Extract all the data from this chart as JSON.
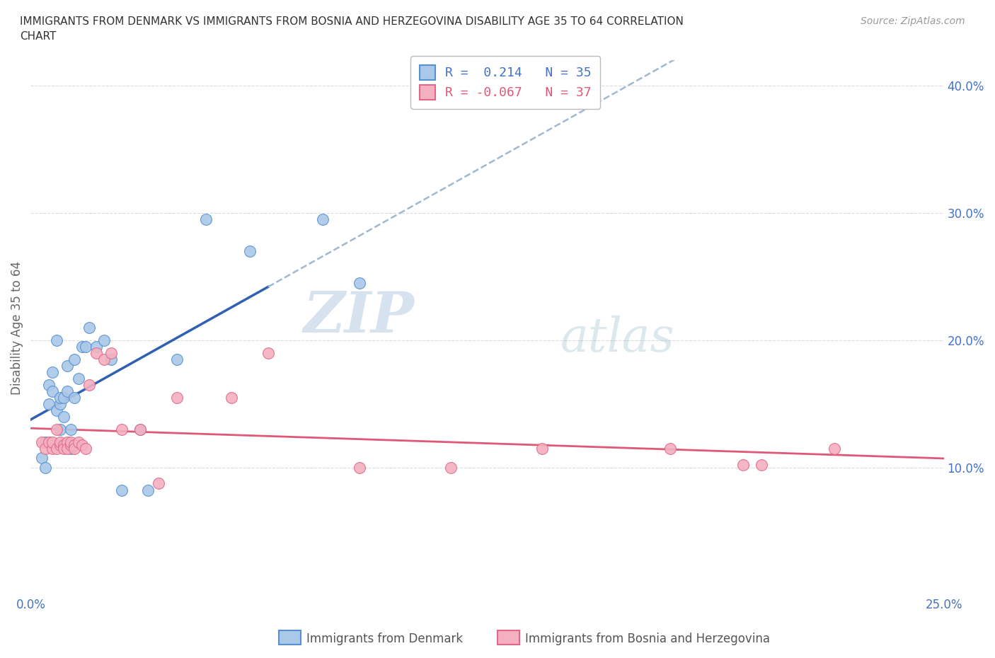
{
  "title": "IMMIGRANTS FROM DENMARK VS IMMIGRANTS FROM BOSNIA AND HERZEGOVINA DISABILITY AGE 35 TO 64 CORRELATION\nCHART",
  "source_text": "Source: ZipAtlas.com",
  "ylabel": "Disability Age 35 to 64",
  "x_min": 0.0,
  "x_max": 0.25,
  "y_min": 0.0,
  "y_max": 0.42,
  "x_ticks": [
    0.0,
    0.05,
    0.1,
    0.15,
    0.2,
    0.25
  ],
  "y_ticks": [
    0.0,
    0.1,
    0.2,
    0.3,
    0.4
  ],
  "denmark_color": "#aac8e8",
  "denmark_edge_color": "#5590d0",
  "bosnia_color": "#f4b0c0",
  "bosnia_edge_color": "#e06888",
  "denmark_line_color": "#3060b0",
  "bosnia_line_color": "#e05878",
  "denmark_dashed_color": "#a0b8d0",
  "grid_color": "#cccccc",
  "watermark_color": "#c5d8e8",
  "legend_R_label1": "R =  0.214   N = 35",
  "legend_R_label2": "R = -0.067   N = 37",
  "denmark_x": [
    0.003,
    0.004,
    0.004,
    0.005,
    0.005,
    0.006,
    0.006,
    0.007,
    0.007,
    0.008,
    0.008,
    0.008,
    0.009,
    0.009,
    0.01,
    0.01,
    0.011,
    0.011,
    0.012,
    0.012,
    0.013,
    0.014,
    0.015,
    0.016,
    0.018,
    0.02,
    0.022,
    0.025,
    0.03,
    0.032,
    0.04,
    0.048,
    0.06,
    0.08,
    0.09
  ],
  "denmark_y": [
    0.108,
    0.12,
    0.1,
    0.15,
    0.165,
    0.16,
    0.175,
    0.145,
    0.2,
    0.15,
    0.155,
    0.13,
    0.155,
    0.14,
    0.16,
    0.18,
    0.115,
    0.13,
    0.155,
    0.185,
    0.17,
    0.195,
    0.195,
    0.21,
    0.195,
    0.2,
    0.185,
    0.082,
    0.13,
    0.082,
    0.185,
    0.295,
    0.27,
    0.295,
    0.245
  ],
  "bosnia_x": [
    0.003,
    0.004,
    0.005,
    0.006,
    0.006,
    0.007,
    0.007,
    0.008,
    0.008,
    0.009,
    0.009,
    0.01,
    0.01,
    0.011,
    0.011,
    0.012,
    0.012,
    0.013,
    0.014,
    0.015,
    0.016,
    0.018,
    0.02,
    0.022,
    0.025,
    0.03,
    0.035,
    0.04,
    0.055,
    0.065,
    0.09,
    0.115,
    0.14,
    0.175,
    0.195,
    0.2,
    0.22
  ],
  "bosnia_y": [
    0.12,
    0.115,
    0.12,
    0.115,
    0.12,
    0.115,
    0.13,
    0.118,
    0.12,
    0.118,
    0.115,
    0.12,
    0.115,
    0.118,
    0.12,
    0.118,
    0.115,
    0.12,
    0.118,
    0.115,
    0.165,
    0.19,
    0.185,
    0.19,
    0.13,
    0.13,
    0.088,
    0.155,
    0.155,
    0.19,
    0.1,
    0.1,
    0.115,
    0.115,
    0.102,
    0.102,
    0.115
  ],
  "background_color": "#ffffff"
}
